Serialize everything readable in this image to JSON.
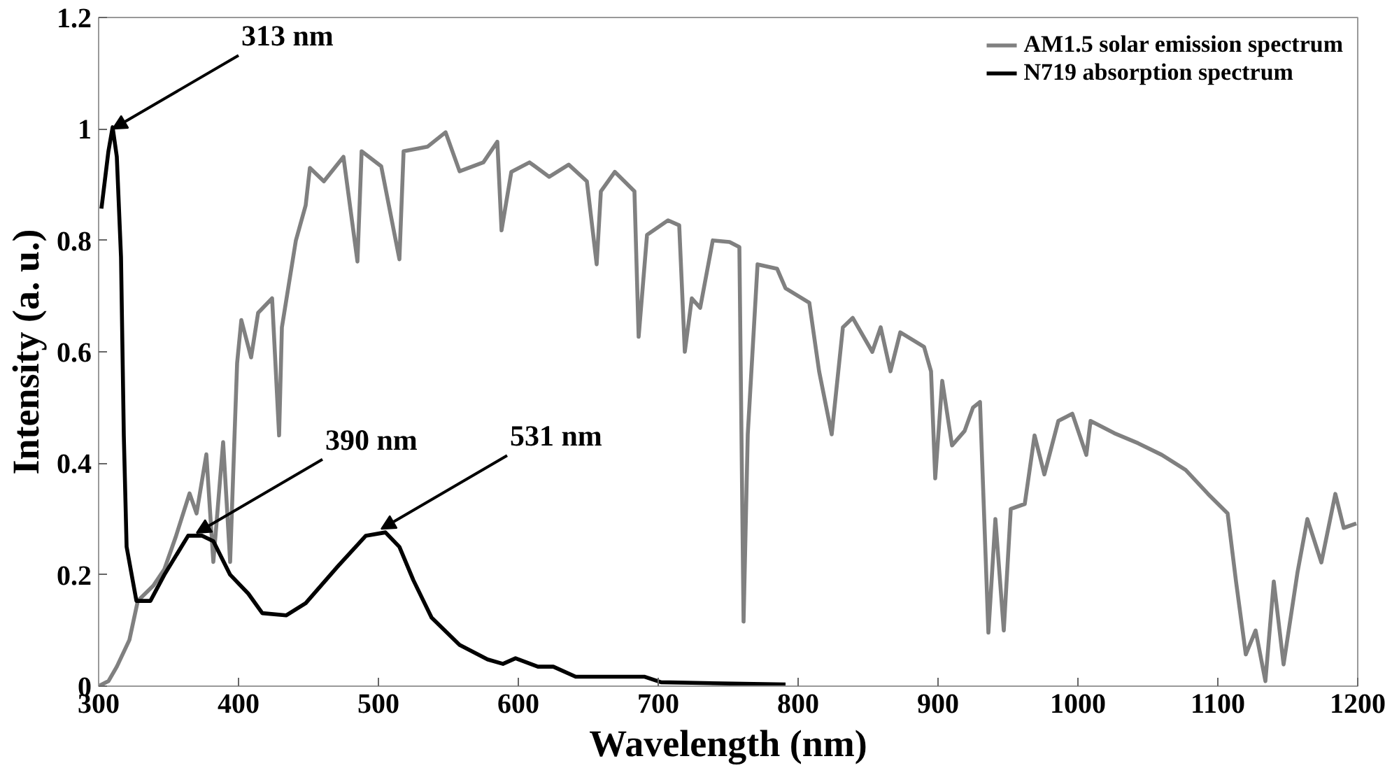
{
  "chart_data": {
    "type": "line",
    "xlabel": "Wavelength (nm)",
    "ylabel": "Intensity (a. u.)",
    "xlim": [
      300,
      1200
    ],
    "ylim": [
      0,
      1.2
    ],
    "xticks": [
      300,
      400,
      500,
      600,
      700,
      800,
      900,
      1000,
      1100,
      1200
    ],
    "yticks": [
      0,
      0.2,
      0.4,
      0.6,
      0.8,
      1,
      1.2
    ],
    "grid": false,
    "legend": "top right",
    "line_style": "solid",
    "marker": "none",
    "annotations": [
      {
        "text": "313 nm",
        "x": 310,
        "y": 1.0
      },
      {
        "text": "390 nm",
        "x": 370,
        "y": 0.275
      },
      {
        "text": "531 nm",
        "x": 502,
        "y": 0.282
      }
    ],
    "series": [
      {
        "name": "AM1.5 solar emission spectrum",
        "color": "#808080",
        "x": [
          300,
          307,
          313,
          322,
          328,
          339,
          347,
          355,
          365,
          370,
          377,
          382,
          389,
          394,
          397,
          399,
          402,
          409,
          414,
          424,
          429,
          431,
          441,
          448,
          451,
          461,
          475,
          485,
          488,
          502,
          515,
          518,
          535,
          548,
          558,
          575,
          585,
          588,
          595,
          608,
          622,
          636,
          649,
          656,
          659,
          669,
          683,
          686,
          692,
          707,
          715,
          719,
          724,
          730,
          739,
          751,
          758,
          761,
          764,
          771,
          785,
          791,
          808,
          815,
          824,
          832,
          839,
          853,
          859,
          866,
          873,
          890,
          895,
          898,
          903,
          910,
          919,
          925,
          930,
          936,
          941,
          947,
          952,
          962,
          969,
          976,
          986,
          996,
          1006,
          1009,
          1026,
          1043,
          1060,
          1077,
          1093,
          1107,
          1113,
          1120,
          1127,
          1134,
          1140,
          1147,
          1157,
          1164,
          1174,
          1184,
          1190,
          1199
        ],
        "values": [
          0,
          0.009,
          0.035,
          0.083,
          0.153,
          0.18,
          0.21,
          0.267,
          0.346,
          0.31,
          0.416,
          0.223,
          0.438,
          0.223,
          0.44,
          0.58,
          0.657,
          0.59,
          0.67,
          0.696,
          0.45,
          0.644,
          0.8,
          0.863,
          0.93,
          0.906,
          0.95,
          0.762,
          0.96,
          0.933,
          0.766,
          0.96,
          0.968,
          0.994,
          0.924,
          0.94,
          0.977,
          0.818,
          0.923,
          0.94,
          0.914,
          0.936,
          0.906,
          0.757,
          0.888,
          0.923,
          0.888,
          0.627,
          0.81,
          0.836,
          0.827,
          0.6,
          0.696,
          0.679,
          0.8,
          0.797,
          0.788,
          0.116,
          0.452,
          0.757,
          0.749,
          0.714,
          0.688,
          0.565,
          0.452,
          0.644,
          0.661,
          0.6,
          0.644,
          0.565,
          0.635,
          0.609,
          0.565,
          0.373,
          0.548,
          0.432,
          0.458,
          0.5,
          0.51,
          0.096,
          0.3,
          0.1,
          0.318,
          0.327,
          0.45,
          0.38,
          0.476,
          0.489,
          0.415,
          0.476,
          0.454,
          0.436,
          0.415,
          0.388,
          0.345,
          0.31,
          0.188,
          0.057,
          0.1,
          0.009,
          0.188,
          0.039,
          0.205,
          0.3,
          0.222,
          0.345,
          0.284,
          0.292
        ]
      },
      {
        "name": "N719 absorption spectrum",
        "color": "#000000",
        "x": [
          302,
          307,
          310,
          313,
          316,
          318,
          320,
          327,
          337,
          347,
          364,
          374,
          382,
          394,
          407,
          417,
          434,
          448,
          471,
          491,
          505,
          515,
          525,
          538,
          558,
          578,
          589,
          598,
          614,
          625,
          641,
          690,
          702,
          791
        ],
        "values": [
          0.857,
          0.96,
          1.003,
          0.95,
          0.77,
          0.45,
          0.25,
          0.153,
          0.153,
          0.2,
          0.27,
          0.27,
          0.26,
          0.2,
          0.166,
          0.131,
          0.127,
          0.149,
          0.215,
          0.27,
          0.276,
          0.25,
          0.19,
          0.123,
          0.074,
          0.048,
          0.04,
          0.05,
          0.035,
          0.035,
          0.017,
          0.017,
          0.007,
          0.003
        ]
      }
    ]
  }
}
